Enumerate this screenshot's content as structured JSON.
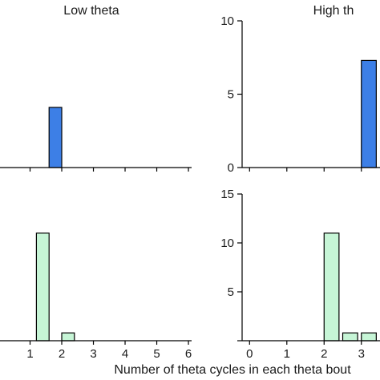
{
  "figure": {
    "xlabel": "Number of theta cycles in each theta bout"
  },
  "chart_data": [
    {
      "type": "bar",
      "panel": "top-left",
      "title": "Low theta",
      "color": "#3d7fe6",
      "bin_width": 0.4,
      "x_ticks": [],
      "y_ticks": [],
      "xlim": [
        0,
        6.1
      ],
      "ylim": [
        0,
        10
      ],
      "bars": [
        {
          "x": 1.6,
          "value": 4.1
        }
      ]
    },
    {
      "type": "bar",
      "panel": "top-right",
      "title": "High th",
      "color": "#3d7fe6",
      "bin_width": 0.4,
      "x_ticks": [],
      "y_ticks": [
        "0",
        "5",
        "10"
      ],
      "xlim": [
        -0.2,
        3.5
      ],
      "ylim": [
        0,
        10
      ],
      "bars": [
        {
          "x": 3.0,
          "value": 7.3
        }
      ]
    },
    {
      "type": "bar",
      "panel": "bottom-left",
      "title": "",
      "color": "#c6f5d6",
      "bin_width": 0.4,
      "x_ticks": [
        "1",
        "2",
        "3",
        "4",
        "5",
        "6"
      ],
      "y_ticks": [],
      "xlim": [
        0,
        6.1
      ],
      "ylim": [
        0,
        15
      ],
      "bars": [
        {
          "x": 1.2,
          "value": 11
        },
        {
          "x": 2.0,
          "value": 0.8
        }
      ]
    },
    {
      "type": "bar",
      "panel": "bottom-right",
      "title": "",
      "color": "#c6f5d6",
      "bin_width": 0.4,
      "x_ticks": [
        "0",
        "1",
        "2",
        "3"
      ],
      "y_ticks": [
        "5",
        "10",
        "15"
      ],
      "xlim": [
        -0.2,
        3.5
      ],
      "ylim": [
        0,
        15
      ],
      "bars": [
        {
          "x": 2.0,
          "value": 11
        },
        {
          "x": 2.5,
          "value": 0.8
        },
        {
          "x": 3.0,
          "value": 0.8
        }
      ]
    }
  ]
}
